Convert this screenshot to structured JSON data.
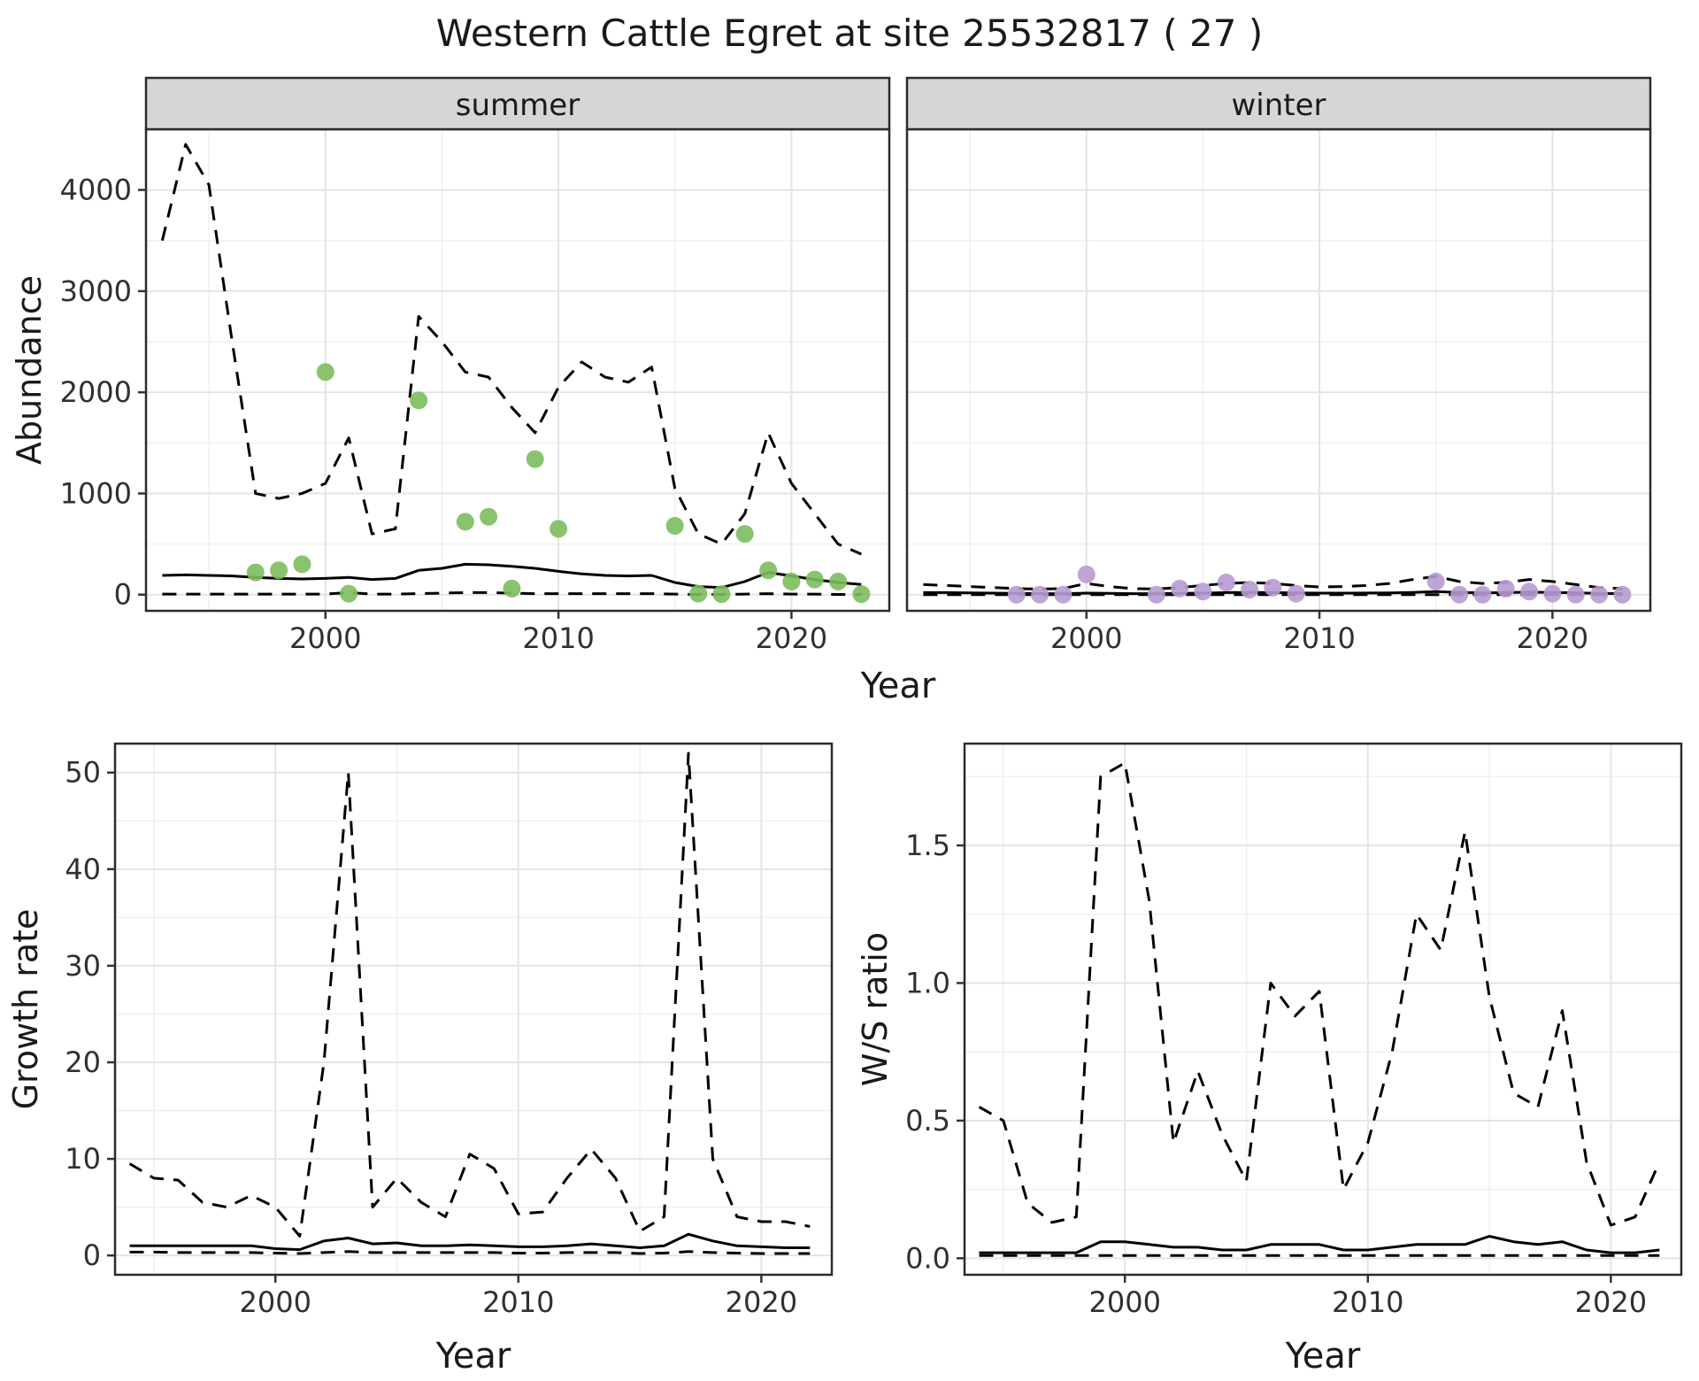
{
  "title": "Western Cattle Egret at site 25532817 ( 27 )",
  "colors": {
    "summer_point": "#7CBC5E",
    "winter_point": "#B79BD0",
    "line": "#000000",
    "strip_bg": "#D6D6D6",
    "grid_major": "#E4E4E4",
    "grid_minor": "#F0F0F0",
    "panel_border": "#2B2B2B",
    "tick_text": "#303030"
  },
  "chart_data": [
    {
      "id": "abundance",
      "type": "line",
      "xlabel": "Year",
      "ylabel": "Abundance",
      "xlim": [
        1992.3,
        2024.2
      ],
      "ylim": [
        -160,
        4600
      ],
      "xticks": [
        2000,
        2010,
        2020
      ],
      "xticks_minor": [
        1995,
        2005,
        2015
      ],
      "yticks": [
        0,
        1000,
        2000,
        3000,
        4000
      ],
      "yticks_minor": [
        500,
        1500,
        2500,
        3500
      ],
      "ytick_labels": [
        "0",
        "1000",
        "2000",
        "3000",
        "4000"
      ],
      "years": [
        1993,
        1994,
        1995,
        1996,
        1997,
        1998,
        1999,
        2000,
        2001,
        2002,
        2003,
        2004,
        2005,
        2006,
        2007,
        2008,
        2009,
        2010,
        2011,
        2012,
        2013,
        2014,
        2015,
        2016,
        2017,
        2018,
        2019,
        2020,
        2021,
        2022,
        2023
      ],
      "facets": [
        {
          "label": "summer",
          "point_color": "#7CBC5E",
          "upper_dashed": [
            3500,
            4450,
            4050,
            2500,
            1000,
            950,
            1000,
            1100,
            1550,
            600,
            650,
            2750,
            2500,
            2200,
            2150,
            1850,
            1600,
            2050,
            2300,
            2150,
            2100,
            2250,
            1050,
            600,
            500,
            800,
            1600,
            1100,
            800,
            500,
            400
          ],
          "median_solid": [
            190,
            195,
            190,
            185,
            170,
            160,
            155,
            160,
            170,
            150,
            160,
            240,
            260,
            300,
            295,
            280,
            260,
            230,
            205,
            190,
            185,
            190,
            120,
            80,
            70,
            130,
            220,
            185,
            150,
            120,
            100
          ],
          "lower_dashed": [
            5,
            5,
            5,
            5,
            5,
            5,
            5,
            5,
            20,
            5,
            5,
            10,
            15,
            20,
            20,
            15,
            10,
            10,
            10,
            10,
            10,
            10,
            5,
            2,
            2,
            5,
            10,
            5,
            5,
            2,
            2
          ],
          "points": {
            "years": [
              1997,
              1998,
              1999,
              2000,
              2001,
              2004,
              2006,
              2007,
              2008,
              2009,
              2010,
              2015,
              2016,
              2017,
              2018,
              2019,
              2020,
              2021,
              2022,
              2023
            ],
            "values": [
              220,
              240,
              300,
              2200,
              10,
              1920,
              720,
              770,
              60,
              1340,
              650,
              680,
              10,
              5,
              600,
              240,
              130,
              150,
              130,
              5
            ]
          }
        },
        {
          "label": "winter",
          "point_color": "#B79BD0",
          "upper_dashed": [
            100,
            90,
            80,
            70,
            60,
            55,
            60,
            110,
            80,
            60,
            55,
            70,
            90,
            110,
            120,
            110,
            90,
            75,
            80,
            90,
            110,
            150,
            180,
            130,
            110,
            120,
            150,
            130,
            100,
            70,
            60
          ],
          "median_solid": [
            20,
            20,
            18,
            15,
            12,
            10,
            10,
            15,
            12,
            10,
            10,
            12,
            15,
            20,
            22,
            20,
            18,
            15,
            15,
            16,
            18,
            22,
            30,
            22,
            18,
            20,
            25,
            22,
            18,
            12,
            10
          ],
          "lower_dashed": [
            0,
            0,
            0,
            0,
            0,
            0,
            0,
            0,
            0,
            0,
            0,
            0,
            0,
            0,
            0,
            0,
            0,
            0,
            0,
            0,
            0,
            0,
            0,
            0,
            0,
            0,
            0,
            0,
            0,
            0,
            0
          ],
          "points": {
            "years": [
              1997,
              1998,
              1999,
              2000,
              2003,
              2004,
              2005,
              2006,
              2007,
              2008,
              2009,
              2015,
              2016,
              2017,
              2018,
              2019,
              2020,
              2021,
              2022,
              2023
            ],
            "values": [
              0,
              0,
              0,
              200,
              0,
              60,
              30,
              120,
              50,
              70,
              10,
              130,
              0,
              0,
              60,
              30,
              10,
              0,
              0,
              0
            ]
          }
        }
      ]
    },
    {
      "id": "growth_rate",
      "type": "line",
      "xlabel": "Year",
      "ylabel": "Growth rate",
      "xlim": [
        1993.4,
        2022.9
      ],
      "ylim": [
        -2,
        53
      ],
      "xticks": [
        2000,
        2010,
        2020
      ],
      "xticks_minor": [
        1995,
        2005,
        2015
      ],
      "yticks": [
        0,
        10,
        20,
        30,
        40,
        50
      ],
      "yticks_minor": [
        5,
        15,
        25,
        35,
        45
      ],
      "ytick_labels": [
        "0",
        "10",
        "20",
        "30",
        "40",
        "50"
      ],
      "years": [
        1994,
        1995,
        1996,
        1997,
        1998,
        1999,
        2000,
        2001,
        2002,
        2003,
        2004,
        2005,
        2006,
        2007,
        2008,
        2009,
        2010,
        2011,
        2012,
        2013,
        2014,
        2015,
        2016,
        2017,
        2018,
        2019,
        2020,
        2021,
        2022
      ],
      "upper_dashed": [
        9.5,
        8,
        7.8,
        5.5,
        5,
        6.2,
        5,
        2,
        20,
        50,
        5,
        8,
        5.5,
        4,
        10.5,
        9,
        4.3,
        4.5,
        8,
        11,
        8,
        2.5,
        4,
        52,
        10,
        4,
        3.5,
        3.5,
        3
      ],
      "median_solid": [
        1,
        1,
        1,
        1,
        1,
        1,
        0.7,
        0.6,
        1.5,
        1.8,
        1.2,
        1.3,
        1,
        1,
        1.1,
        1,
        0.9,
        0.9,
        1,
        1.2,
        1,
        0.8,
        1,
        2.2,
        1.5,
        1,
        0.9,
        0.8,
        0.8
      ],
      "lower_dashed": [
        0.35,
        0.35,
        0.3,
        0.3,
        0.3,
        0.3,
        0.25,
        0.2,
        0.3,
        0.4,
        0.3,
        0.3,
        0.3,
        0.3,
        0.3,
        0.3,
        0.25,
        0.25,
        0.3,
        0.3,
        0.3,
        0.2,
        0.25,
        0.4,
        0.3,
        0.25,
        0.2,
        0.2,
        0.2
      ]
    },
    {
      "id": "ws_ratio",
      "type": "line",
      "xlabel": "Year",
      "ylabel": "W/S ratio",
      "xlim": [
        1993.4,
        2022.9
      ],
      "ylim": [
        -0.06,
        1.87
      ],
      "xticks": [
        2000,
        2010,
        2020
      ],
      "xticks_minor": [
        1995,
        2005,
        2015
      ],
      "yticks": [
        0,
        0.5,
        1.0,
        1.5
      ],
      "yticks_minor": [
        0.25,
        0.75,
        1.25,
        1.75
      ],
      "ytick_labels": [
        "0.0",
        "0.5",
        "1.0",
        "1.5"
      ],
      "years": [
        1994,
        1995,
        1996,
        1997,
        1998,
        1999,
        2000,
        2001,
        2002,
        2003,
        2004,
        2005,
        2006,
        2007,
        2008,
        2009,
        2010,
        2011,
        2012,
        2013,
        2014,
        2015,
        2016,
        2017,
        2018,
        2019,
        2020,
        2021,
        2022
      ],
      "upper_dashed": [
        0.55,
        0.5,
        0.2,
        0.13,
        0.15,
        1.75,
        1.8,
        1.3,
        0.42,
        0.68,
        0.45,
        0.28,
        1.0,
        0.88,
        0.97,
        0.25,
        0.42,
        0.75,
        1.25,
        1.12,
        1.55,
        0.95,
        0.6,
        0.55,
        0.9,
        0.35,
        0.12,
        0.15,
        0.35
      ],
      "median_solid": [
        0.02,
        0.02,
        0.02,
        0.02,
        0.02,
        0.06,
        0.06,
        0.05,
        0.04,
        0.04,
        0.03,
        0.03,
        0.05,
        0.05,
        0.05,
        0.03,
        0.03,
        0.04,
        0.05,
        0.05,
        0.05,
        0.08,
        0.06,
        0.05,
        0.06,
        0.03,
        0.02,
        0.02,
        0.03
      ],
      "lower_dashed": [
        0.01,
        0.01,
        0.01,
        0.01,
        0.01,
        0.01,
        0.01,
        0.01,
        0.01,
        0.01,
        0.01,
        0.01,
        0.01,
        0.01,
        0.01,
        0.01,
        0.01,
        0.01,
        0.01,
        0.01,
        0.01,
        0.01,
        0.01,
        0.01,
        0.01,
        0.01,
        0.01,
        0.01,
        0.01
      ]
    }
  ]
}
